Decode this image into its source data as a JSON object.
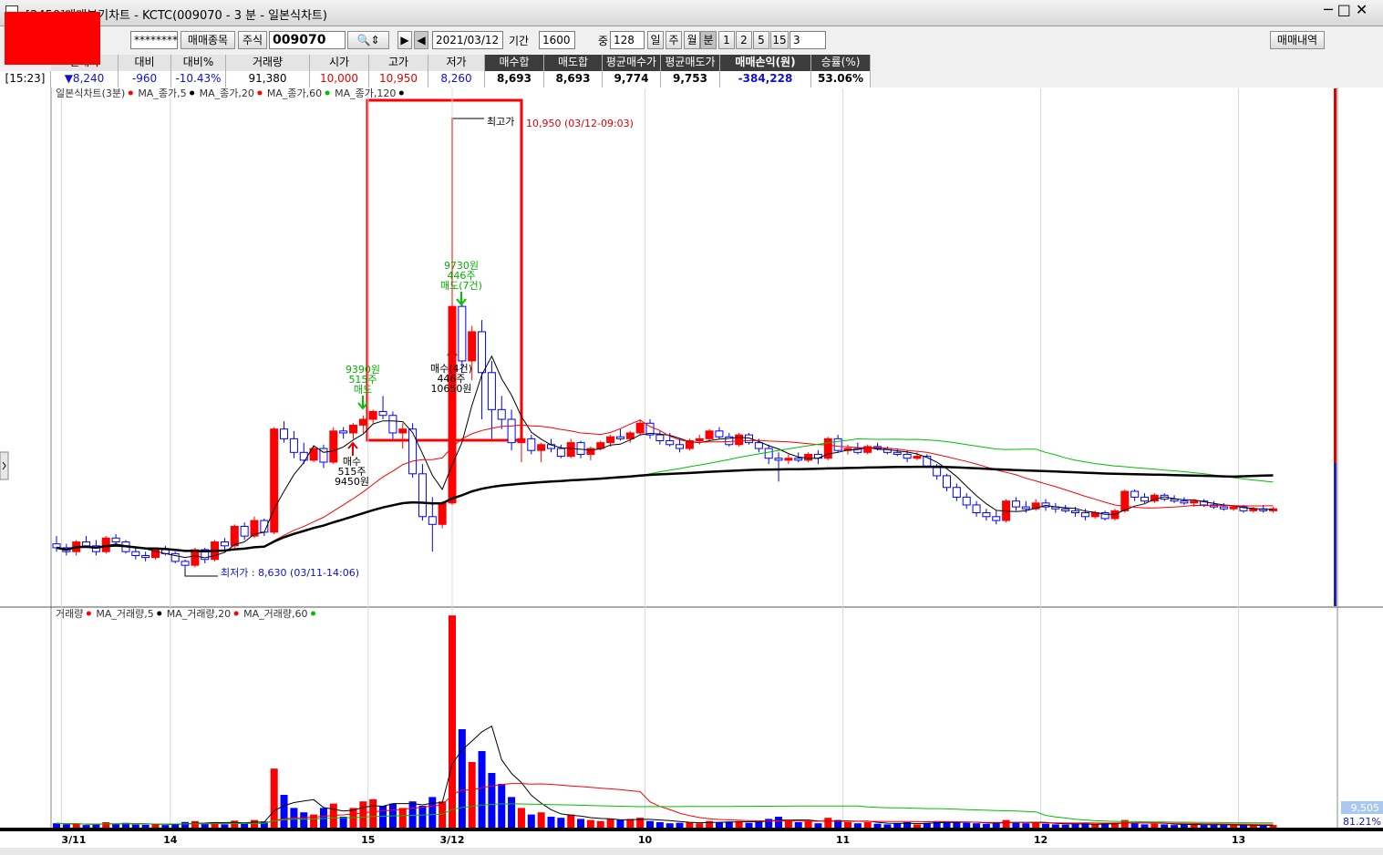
{
  "window": {
    "title": "[2450]매매분기차트 - KCTC(009070 - 3 분 - 일본식차트)"
  },
  "toolbar": {
    "password": "********",
    "trade_item_button": "매매종목",
    "market": "주식",
    "code": "009070",
    "date": "2021/03/12",
    "period_label": "기간",
    "period": "1600",
    "mid_label": "중",
    "mid": "128",
    "intervals": [
      "일",
      "주",
      "월",
      "분",
      "1",
      "2",
      "5",
      "15"
    ],
    "minute": "3",
    "history_button": "매매내역"
  },
  "summary": {
    "time": "[15:23]",
    "columns": [
      {
        "header": "현재가",
        "value": "▼8,240"
      },
      {
        "header": "대비",
        "value": "-960"
      },
      {
        "header": "대비%",
        "value": "-10.43%"
      },
      {
        "header": "거래량",
        "value": "91,380"
      },
      {
        "header": "시가",
        "value": "10,000"
      },
      {
        "header": "고가",
        "value": "10,950"
      },
      {
        "header": "저가",
        "value": "8,260"
      },
      {
        "header": "매수합",
        "value": "8,693"
      },
      {
        "header": "매도합",
        "value": "8,693"
      },
      {
        "header": "평균매수가",
        "value": "9,774"
      },
      {
        "header": "평균매도가",
        "value": "9,753"
      },
      {
        "header": "매매손익(원)",
        "value": "-384,228"
      },
      {
        "header": "승률(%)",
        "value": "53.06%"
      }
    ]
  },
  "chart_data": {
    "type": "candlestick",
    "title": "일본식차트(3분)",
    "candle_color": "#ff0000",
    "up_color": "#ff0000",
    "down_color": "#0000ff",
    "moving_averages": [
      {
        "name": "MA_종가,5",
        "period": 5,
        "color": "#000000"
      },
      {
        "name": "MA_종가,20",
        "period": 20,
        "color": "#ff0000"
      },
      {
        "name": "MA_종가,60",
        "period": 60,
        "color": "#00c000"
      },
      {
        "name": "MA_종가,120",
        "period": 120,
        "color": "#000000"
      }
    ],
    "ylim": [
      8440,
      11100
    ],
    "xticks": [
      {
        "value": 0.5,
        "label": "3/11"
      },
      {
        "value": 11.5,
        "label": "14"
      },
      {
        "value": 31.5,
        "label": "15"
      },
      {
        "value": 40,
        "label": "3/12"
      },
      {
        "value": 59.5,
        "label": "10"
      },
      {
        "value": 79.5,
        "label": "11"
      },
      {
        "value": 99.5,
        "label": "12"
      },
      {
        "value": 119.5,
        "label": "13"
      }
    ],
    "grid": true,
    "candles": [
      [
        8760,
        8800,
        8720,
        8740,
        2000
      ],
      [
        8740,
        8760,
        8700,
        8720,
        1500
      ],
      [
        8720,
        8780,
        8700,
        8770,
        1800
      ],
      [
        8770,
        8800,
        8740,
        8750,
        1200
      ],
      [
        8750,
        8780,
        8700,
        8720,
        1500
      ],
      [
        8720,
        8800,
        8710,
        8790,
        2500
      ],
      [
        8790,
        8810,
        8760,
        8770,
        1500
      ],
      [
        8770,
        8780,
        8710,
        8720,
        2200
      ],
      [
        8720,
        8740,
        8680,
        8700,
        1400
      ],
      [
        8700,
        8720,
        8670,
        8690,
        1300
      ],
      [
        8690,
        8740,
        8680,
        8730,
        1600
      ],
      [
        8730,
        8750,
        8700,
        8710,
        1200
      ],
      [
        8710,
        8720,
        8660,
        8670,
        1800
      ],
      [
        8670,
        8680,
        8630,
        8650,
        2600
      ],
      [
        8650,
        8740,
        8640,
        8730,
        3000
      ],
      [
        8730,
        8740,
        8660,
        8680,
        1800
      ],
      [
        8680,
        8780,
        8670,
        8770,
        2500
      ],
      [
        8770,
        8790,
        8730,
        8750,
        1500
      ],
      [
        8750,
        8860,
        8740,
        8850,
        3200
      ],
      [
        8850,
        8870,
        8780,
        8800,
        2000
      ],
      [
        8800,
        8900,
        8790,
        8880,
        3500
      ],
      [
        8880,
        8890,
        8800,
        8820,
        2800
      ],
      [
        8820,
        9360,
        8810,
        9350,
        27000
      ],
      [
        9350,
        9390,
        9280,
        9300,
        15000
      ],
      [
        9300,
        9340,
        9200,
        9230,
        9000
      ],
      [
        9230,
        9280,
        9170,
        9190,
        7000
      ],
      [
        9190,
        9260,
        9180,
        9250,
        6000
      ],
      [
        9250,
        9270,
        9150,
        9180,
        9000
      ],
      [
        9180,
        9360,
        9170,
        9340,
        11000
      ],
      [
        9340,
        9360,
        9300,
        9330,
        5000
      ],
      [
        9330,
        9380,
        9300,
        9370,
        9000
      ],
      [
        9370,
        9420,
        9330,
        9400,
        12000
      ],
      [
        9400,
        9450,
        9380,
        9440,
        13000
      ],
      [
        9440,
        9520,
        9400,
        9420,
        10000
      ],
      [
        9420,
        9440,
        9300,
        9330,
        11000
      ],
      [
        9330,
        9380,
        9250,
        9350,
        9000
      ],
      [
        9350,
        9380,
        9100,
        9120,
        12000
      ],
      [
        9120,
        9170,
        8880,
        8900,
        10000
      ],
      [
        8900,
        9000,
        8720,
        8860,
        14000
      ],
      [
        8860,
        8980,
        8840,
        8970,
        12000
      ],
      [
        8970,
        10950,
        8960,
        9980,
        97000
      ],
      [
        9980,
        10000,
        9650,
        9700,
        45000
      ],
      [
        9700,
        9880,
        9600,
        9850,
        30000
      ],
      [
        9850,
        9910,
        9400,
        9640,
        35000
      ],
      [
        9640,
        9700,
        9300,
        9450,
        25000
      ],
      [
        9450,
        9520,
        9350,
        9400,
        20000
      ],
      [
        9400,
        9450,
        9240,
        9280,
        14000
      ],
      [
        9280,
        9330,
        9180,
        9300,
        9000
      ],
      [
        9300,
        9320,
        9220,
        9240,
        6000
      ],
      [
        9240,
        9280,
        9180,
        9270,
        7000
      ],
      [
        9270,
        9300,
        9230,
        9250,
        5000
      ],
      [
        9250,
        9270,
        9200,
        9210,
        4500
      ],
      [
        9210,
        9300,
        9200,
        9280,
        6000
      ],
      [
        9280,
        9290,
        9200,
        9220,
        4000
      ],
      [
        9220,
        9260,
        9190,
        9250,
        3500
      ],
      [
        9250,
        9290,
        9240,
        9280,
        3000
      ],
      [
        9280,
        9320,
        9260,
        9310,
        4000
      ],
      [
        9310,
        9350,
        9290,
        9300,
        3500
      ],
      [
        9300,
        9340,
        9280,
        9330,
        4000
      ],
      [
        9330,
        9400,
        9320,
        9380,
        4500
      ],
      [
        9380,
        9400,
        9300,
        9320,
        3000
      ],
      [
        9320,
        9340,
        9270,
        9290,
        2500
      ],
      [
        9290,
        9330,
        9260,
        9270,
        2000
      ],
      [
        9270,
        9300,
        9230,
        9250,
        2200
      ],
      [
        9250,
        9300,
        9240,
        9290,
        2500
      ],
      [
        9290,
        9320,
        9270,
        9300,
        2000
      ],
      [
        9300,
        9350,
        9290,
        9340,
        3000
      ],
      [
        9340,
        9360,
        9300,
        9310,
        2500
      ],
      [
        9310,
        9330,
        9260,
        9270,
        2800
      ],
      [
        9270,
        9330,
        9260,
        9320,
        3000
      ],
      [
        9320,
        9330,
        9270,
        9280,
        2200
      ],
      [
        9280,
        9300,
        9230,
        9250,
        3000
      ],
      [
        9250,
        9270,
        9170,
        9200,
        4000
      ],
      [
        9200,
        9230,
        9080,
        9190,
        5000
      ],
      [
        9190,
        9220,
        9170,
        9200,
        3000
      ],
      [
        9200,
        9230,
        9180,
        9190,
        2500
      ],
      [
        9190,
        9230,
        9180,
        9220,
        3000
      ],
      [
        9220,
        9240,
        9170,
        9200,
        2000
      ],
      [
        9200,
        9310,
        9190,
        9300,
        4500
      ],
      [
        9300,
        9320,
        9230,
        9240,
        3500
      ],
      [
        9240,
        9270,
        9220,
        9250,
        2500
      ],
      [
        9250,
        9280,
        9220,
        9230,
        2000
      ],
      [
        9230,
        9270,
        9220,
        9260,
        2500
      ],
      [
        9260,
        9280,
        9240,
        9250,
        1800
      ],
      [
        9250,
        9260,
        9220,
        9230,
        1500
      ],
      [
        9230,
        9250,
        9210,
        9220,
        2000
      ],
      [
        9220,
        9240,
        9180,
        9200,
        2500
      ],
      [
        9200,
        9230,
        9190,
        9210,
        1500
      ],
      [
        9210,
        9220,
        9150,
        9160,
        2200
      ],
      [
        9160,
        9170,
        9090,
        9110,
        3000
      ],
      [
        9110,
        9120,
        9030,
        9050,
        2800
      ],
      [
        9050,
        9070,
        8980,
        9000,
        2500
      ],
      [
        9000,
        9020,
        8940,
        8960,
        2200
      ],
      [
        8960,
        8980,
        8900,
        8920,
        2000
      ],
      [
        8920,
        8940,
        8880,
        8900,
        1800
      ],
      [
        8900,
        8930,
        8860,
        8880,
        2000
      ],
      [
        8880,
        8990,
        8870,
        8980,
        3500
      ],
      [
        8980,
        9000,
        8930,
        8950,
        2500
      ],
      [
        8950,
        8980,
        8920,
        8940,
        2000
      ],
      [
        8940,
        8990,
        8930,
        8970,
        2200
      ],
      [
        8970,
        8990,
        8930,
        8950,
        1800
      ],
      [
        8950,
        8970,
        8920,
        8940,
        1500
      ],
      [
        8940,
        8960,
        8920,
        8930,
        1400
      ],
      [
        8930,
        8950,
        8900,
        8920,
        1600
      ],
      [
        8920,
        8940,
        8880,
        8900,
        2000
      ],
      [
        8900,
        8930,
        8890,
        8920,
        1500
      ],
      [
        8920,
        8930,
        8880,
        8890,
        1800
      ],
      [
        8890,
        8940,
        8880,
        8930,
        2000
      ],
      [
        8930,
        9040,
        8920,
        9030,
        3500
      ],
      [
        9030,
        9040,
        8980,
        9000,
        2200
      ],
      [
        9000,
        9020,
        8970,
        8980,
        1500
      ],
      [
        8980,
        9020,
        8970,
        9010,
        1800
      ],
      [
        9010,
        9020,
        8980,
        8990,
        1500
      ],
      [
        8990,
        9010,
        8970,
        8980,
        1200
      ],
      [
        8980,
        9000,
        8960,
        8970,
        1400
      ],
      [
        8970,
        8990,
        8950,
        8980,
        1300
      ],
      [
        8980,
        8990,
        8950,
        8960,
        1200
      ],
      [
        8960,
        8980,
        8940,
        8950,
        1500
      ],
      [
        8950,
        8970,
        8930,
        8940,
        1200
      ],
      [
        8940,
        8960,
        8930,
        8950,
        1000
      ],
      [
        8950,
        8960,
        8920,
        8930,
        1100
      ],
      [
        8930,
        8950,
        8920,
        8940,
        1000
      ],
      [
        8940,
        8960,
        8920,
        8930,
        900
      ],
      [
        8930,
        8950,
        8920,
        8940,
        1200
      ]
    ],
    "annotations": {
      "high_label": "최고가",
      "high_text": "10,950 (03/12-09:03)",
      "low_text": "최저가 : 8,630 (03/11-14:06)",
      "trades": [
        [
          "9390원",
          "515주",
          "매도"
        ],
        [
          "매수",
          "515주",
          "9450원"
        ],
        [
          "9730원",
          "446주",
          "매도(7건)"
        ],
        [
          "매수(4건)",
          "446주",
          "10650원"
        ]
      ]
    },
    "volume": {
      "title": "거래량",
      "ylim": [
        0,
        100000
      ],
      "moving_averages": [
        {
          "name": "MA_거래량,5",
          "period": 5,
          "color": "#000000"
        },
        {
          "name": "MA_거래량,20",
          "period": 20,
          "color": "#ff0000"
        },
        {
          "name": "MA_거래량,60",
          "period": 60,
          "color": "#00c000"
        }
      ],
      "current": "9,505",
      "ratio": "81.21%"
    }
  }
}
